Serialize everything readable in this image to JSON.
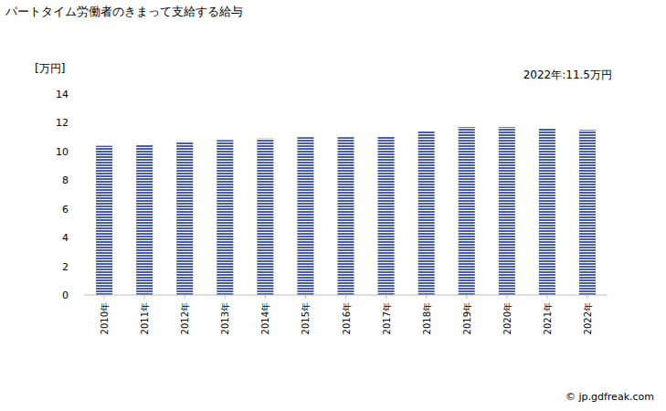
{
  "chart_data": {
    "type": "bar",
    "title": "パートタイム労働者のきまって支給する給与",
    "y_label": "[万円]",
    "annotation": "2022年:11.5万円",
    "source": "© jp.gdfreak.com",
    "categories": [
      "2010年",
      "2011年",
      "2012年",
      "2013年",
      "2014年",
      "2015年",
      "2016年",
      "2017年",
      "2018年",
      "2019年",
      "2020年",
      "2021年",
      "2022年"
    ],
    "values": [
      10.4,
      10.5,
      10.7,
      10.8,
      10.9,
      11.0,
      11.0,
      11.05,
      11.4,
      11.7,
      11.7,
      11.6,
      11.5
    ],
    "color": "#4a5ea8",
    "ylim": [
      0,
      14
    ],
    "yticks": [
      0,
      2,
      4,
      6,
      8,
      10,
      12,
      14
    ],
    "grid": false
  }
}
